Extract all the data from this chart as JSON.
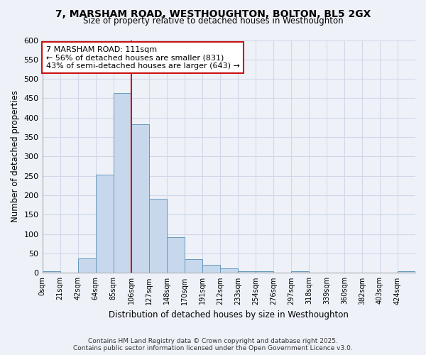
{
  "title_line1": "7, MARSHAM ROAD, WESTHOUGHTON, BOLTON, BL5 2GX",
  "title_line2": "Size of property relative to detached houses in Westhoughton",
  "xlabel": "Distribution of detached houses by size in Westhoughton",
  "ylabel": "Number of detached properties",
  "bar_values": [
    4,
    0,
    37,
    253,
    464,
    383,
    191,
    93,
    36,
    20,
    11,
    5,
    5,
    0,
    4,
    0,
    0,
    0,
    0,
    0,
    4
  ],
  "bin_labels": [
    "0sqm",
    "21sqm",
    "42sqm",
    "64sqm",
    "85sqm",
    "106sqm",
    "127sqm",
    "148sqm",
    "170sqm",
    "191sqm",
    "212sqm",
    "233sqm",
    "254sqm",
    "276sqm",
    "297sqm",
    "318sqm",
    "339sqm",
    "360sqm",
    "382sqm",
    "403sqm",
    "424sqm"
  ],
  "bar_color": "#c8d8ec",
  "bar_edge_color": "#6699bb",
  "bar_edge_width": 0.7,
  "vline_x": 5,
  "vline_color": "#cc1111",
  "annotation_text": "7 MARSHAM ROAD: 111sqm\n← 56% of detached houses are smaller (831)\n43% of semi-detached houses are larger (643) →",
  "annotation_box_color": "#ffffff",
  "annotation_box_edge_color": "#cc1111",
  "ylim": [
    0,
    600
  ],
  "yticks": [
    0,
    50,
    100,
    150,
    200,
    250,
    300,
    350,
    400,
    450,
    500,
    550,
    600
  ],
  "background_color": "#eef2f8",
  "grid_color": "#d0d8e8",
  "footer_line1": "Contains HM Land Registry data © Crown copyright and database right 2025.",
  "footer_line2": "Contains public sector information licensed under the Open Government Licence v3.0."
}
